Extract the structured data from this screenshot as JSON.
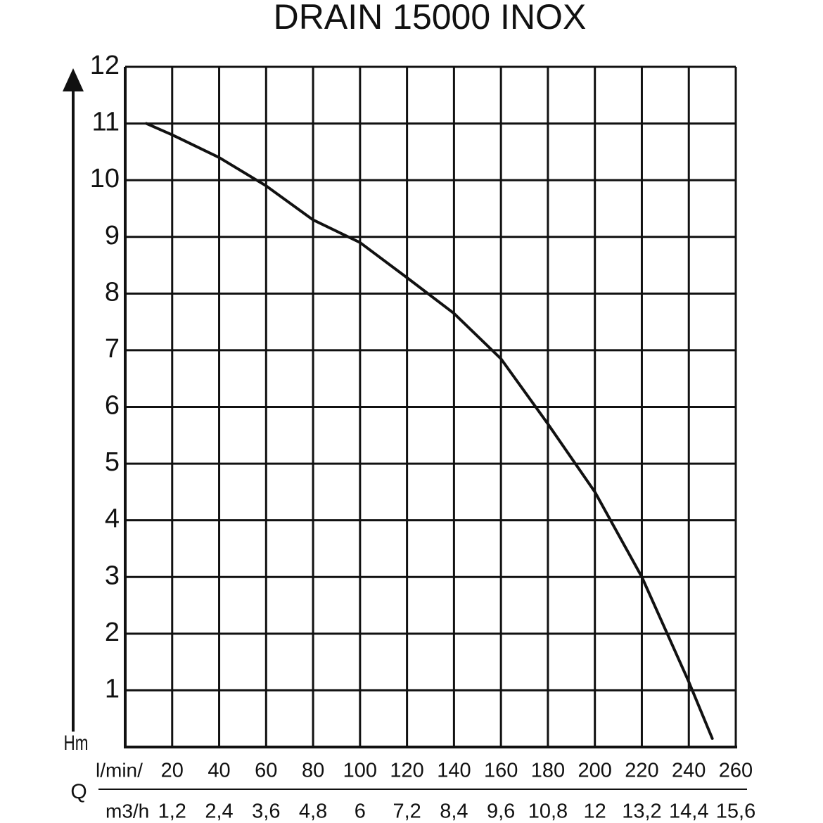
{
  "chart_data": {
    "type": "line",
    "title": "DRAIN 15000 INOX",
    "y_label": "Hm",
    "x_label": "Q",
    "x_unit": "l/min/",
    "x2_unit": "m3/h",
    "x": [
      9,
      20,
      40,
      60,
      80,
      100,
      120,
      140,
      160,
      180,
      200,
      220,
      240,
      250
    ],
    "series": [
      {
        "name": "Hm",
        "color": "#111111",
        "values": [
          11,
          10.8,
          10.4,
          9.9,
          9.3,
          8.9,
          8.28,
          7.65,
          6.85,
          5.7,
          4.5,
          3.0,
          1.15,
          0.15
        ]
      }
    ],
    "xlim": [
      0,
      260
    ],
    "ylim": [
      0,
      12
    ],
    "xticks": [
      20,
      40,
      60,
      80,
      100,
      120,
      140,
      160,
      180,
      200,
      220,
      240,
      260
    ],
    "x2ticks": [
      "1,2",
      "2,4",
      "3,6",
      "4,8",
      "6",
      "7,2",
      "8,4",
      "9,6",
      "10,8",
      "12",
      "13,2",
      "14,4",
      "15,6"
    ],
    "yticks": [
      1,
      2,
      3,
      4,
      5,
      6,
      7,
      8,
      9,
      10,
      11,
      12
    ],
    "grid": true
  }
}
